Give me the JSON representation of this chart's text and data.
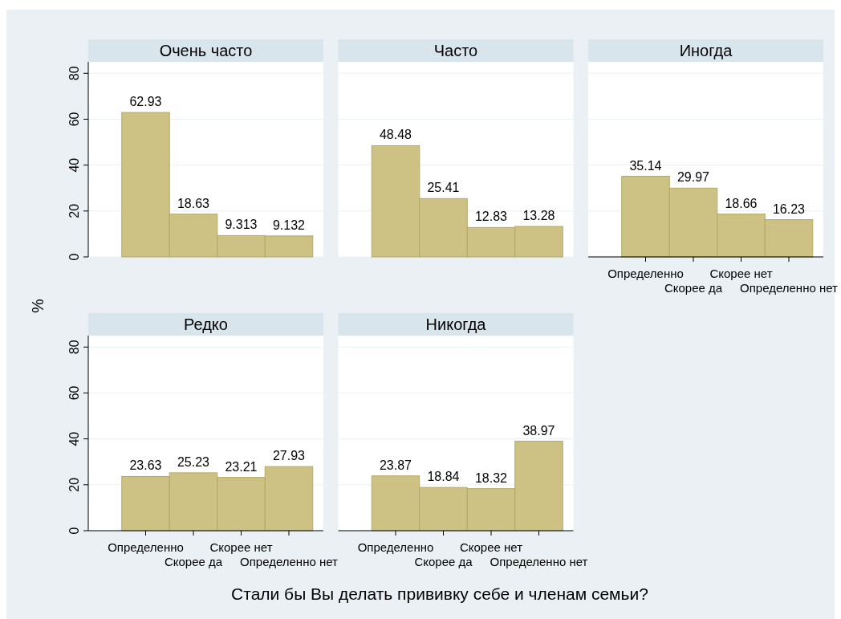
{
  "chart_data": [
    {
      "type": "bar",
      "title": "Очень часто",
      "ylabel": "%",
      "xlabel": "Стали бы Вы делать прививку себе и членам семьи?",
      "categories": [
        "Определенно",
        "Скорее да",
        "Скорее нет",
        "Определенно нет"
      ],
      "values": [
        62.93,
        18.63,
        9.313,
        9.132
      ],
      "color": "#cdc283",
      "ylim": [
        0,
        85
      ],
      "yticks": [
        0,
        20,
        40,
        60,
        80
      ],
      "grid": "y",
      "data_labels": true,
      "tick_labels": "y"
    },
    {
      "type": "bar",
      "title": "Часто",
      "categories": [
        "Определенно",
        "Скорее да",
        "Скорее нет",
        "Определенно нет"
      ],
      "values": [
        48.48,
        25.41,
        12.83,
        13.28
      ],
      "color": "#cdc283",
      "ylim": [
        0,
        85
      ],
      "yticks": [
        0,
        20,
        40,
        60,
        80
      ],
      "grid": "y",
      "data_labels": true,
      "tick_labels": false
    },
    {
      "type": "bar",
      "title": "Иногда",
      "categories": [
        "Определенно",
        "Скорее да",
        "Скорее нет",
        "Определенно нет"
      ],
      "values": [
        35.14,
        29.97,
        18.66,
        16.23
      ],
      "color": "#cdc283",
      "ylim": [
        0,
        85
      ],
      "yticks": [
        0,
        20,
        40,
        60,
        80
      ],
      "grid": "y",
      "data_labels": true,
      "tick_labels": "x"
    },
    {
      "type": "bar",
      "title": "Редко",
      "categories": [
        "Определенно",
        "Скорее да",
        "Скорее нет",
        "Определенно нет"
      ],
      "values": [
        23.63,
        25.23,
        23.21,
        27.93
      ],
      "color": "#cdc283",
      "ylim": [
        0,
        85
      ],
      "yticks": [
        0,
        20,
        40,
        60,
        80
      ],
      "grid": "y",
      "data_labels": true
    },
    {
      "type": "bar",
      "title": "Никогда",
      "categories": [
        "Определенно",
        "Скорее да",
        "Скорее нет",
        "Определенно нет"
      ],
      "values": [
        23.87,
        18.84,
        18.32,
        38.97
      ],
      "color": "#cdc283",
      "ylim": [
        0,
        85
      ],
      "yticks": [
        0,
        20,
        40,
        60,
        80
      ],
      "grid": "y",
      "data_labels": true,
      "tick_labels": "x"
    }
  ]
}
